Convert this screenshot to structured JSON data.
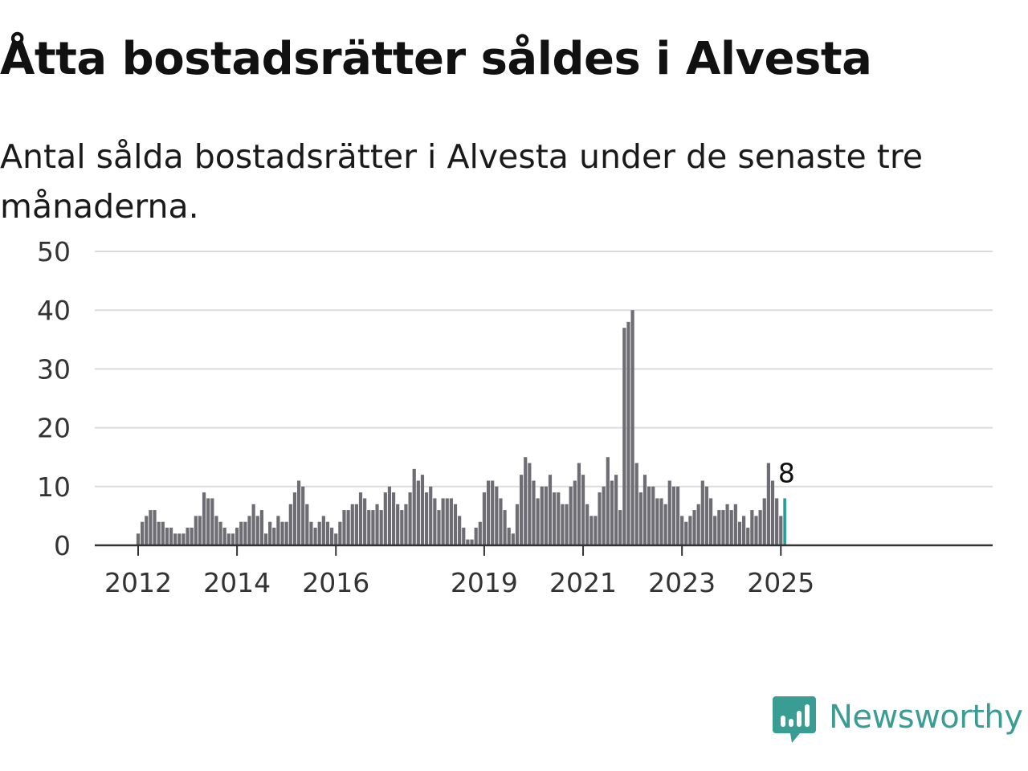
{
  "title": "Åtta bostadsrätter såldes i Alvesta",
  "subtitle": "Antal sålda bostadsrätter i Alvesta under de senaste tre månaderna.",
  "brand": {
    "name": "Newsworthy",
    "icon": "newsworthy-logo-icon",
    "color": "#3a9d94"
  },
  "chart_data": {
    "type": "bar",
    "x_start": "2012-01",
    "frequency": "monthly",
    "ylim": [
      0,
      50
    ],
    "yticks": [
      0,
      10,
      20,
      30,
      40,
      50
    ],
    "xticks": [
      "2012",
      "2014",
      "2016",
      "2019",
      "2021",
      "2023",
      "2025"
    ],
    "grid": true,
    "bar_color": "#6e6d73",
    "highlight_color": "#21a097",
    "highlight_label": "8",
    "values": [
      2,
      4,
      5,
      6,
      6,
      4,
      4,
      3,
      3,
      2,
      2,
      2,
      3,
      3,
      5,
      5,
      9,
      8,
      8,
      5,
      4,
      3,
      2,
      2,
      3,
      4,
      4,
      5,
      7,
      5,
      6,
      2,
      4,
      3,
      5,
      4,
      4,
      7,
      9,
      11,
      10,
      7,
      4,
      3,
      4,
      5,
      4,
      3,
      2,
      4,
      6,
      6,
      7,
      7,
      9,
      8,
      6,
      6,
      7,
      6,
      9,
      10,
      9,
      7,
      6,
      7,
      9,
      13,
      11,
      12,
      9,
      10,
      8,
      6,
      8,
      8,
      8,
      7,
      5,
      3,
      1,
      1,
      3,
      4,
      9,
      11,
      11,
      10,
      8,
      6,
      3,
      2,
      7,
      12,
      15,
      14,
      11,
      8,
      10,
      10,
      12,
      9,
      9,
      7,
      7,
      10,
      11,
      14,
      12,
      7,
      5,
      5,
      9,
      10,
      15,
      11,
      12,
      6,
      37,
      38,
      40,
      14,
      9,
      12,
      10,
      10,
      8,
      8,
      7,
      11,
      10,
      10,
      5,
      4,
      5,
      6,
      7,
      11,
      10,
      8,
      5,
      6,
      6,
      7,
      6,
      7,
      4,
      5,
      3,
      6,
      5,
      6,
      8,
      14,
      11,
      8,
      5,
      8
    ]
  }
}
